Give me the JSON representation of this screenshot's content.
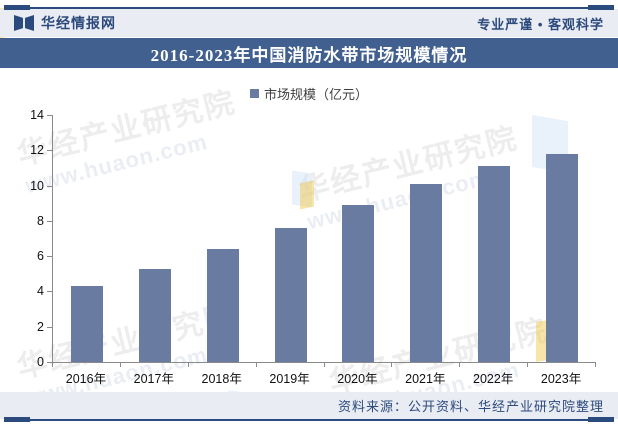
{
  "header": {
    "brand": "华经情报网",
    "slogan": "专业严谨 • 客观科学"
  },
  "title": "2016-2023年中国消防水带市场规模情况",
  "legend": {
    "label": "市场规模（亿元）"
  },
  "chart_data": {
    "type": "bar",
    "title": "2016-2023年中国消防水带市场规模情况",
    "series_name": "市场规模（亿元）",
    "categories": [
      "2016年",
      "2017年",
      "2018年",
      "2019年",
      "2020年",
      "2021年",
      "2022年",
      "2023年"
    ],
    "values": [
      4.3,
      5.3,
      6.4,
      7.6,
      8.9,
      10.1,
      11.1,
      11.8
    ],
    "xlabel": "",
    "ylabel": "",
    "ylim": [
      0,
      14
    ],
    "yticks": [
      0,
      2,
      4,
      6,
      8,
      10,
      12,
      14
    ],
    "grid": false,
    "legend_position": "top"
  },
  "footer": {
    "source": "资料来源：公开资料、华经产业研究院整理"
  },
  "watermark": {
    "text_cn": "华经产业研究院",
    "text_url": "www.huaon.com"
  },
  "colors": {
    "bar": "#6a7ba1",
    "accent_dark": "#2b4a7d",
    "title_band": "#41608f",
    "strip_bg": "#e9ecf3",
    "text_blue": "#2c4a7c"
  }
}
